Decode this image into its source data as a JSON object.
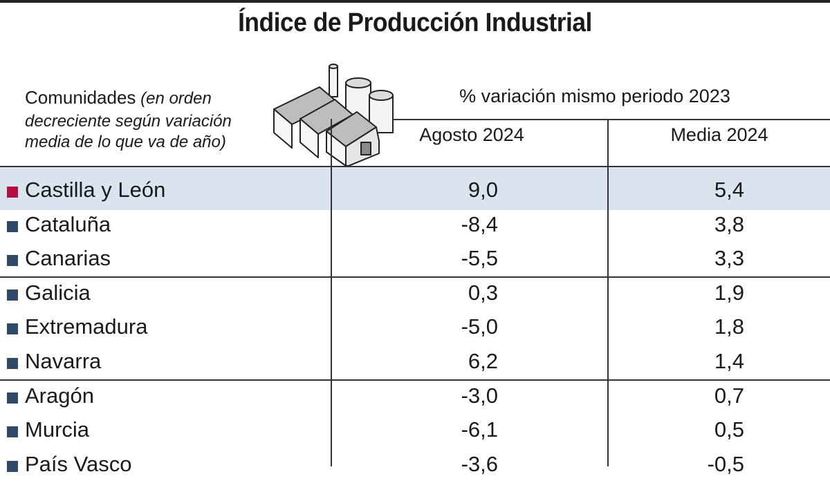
{
  "title": "Índice de Producción Industrial",
  "header": {
    "first_col_main": "Comunidades",
    "first_col_note_a": " (en orden",
    "first_col_note_b": "decreciente según variación",
    "first_col_note_c": "media de lo que va de año)",
    "group_label": "% variación mismo periodo 2023",
    "col1": "Agosto 2024",
    "col2": "Media 2024",
    "icon": "factory-icon"
  },
  "colors": {
    "highlight_bg": "#d9e4ef",
    "highlight_marker": "#b01040",
    "marker": "#2f4a66"
  },
  "chart_data": {
    "type": "table",
    "title": "Índice de Producción Industrial",
    "columns": [
      "Comunidades",
      "Agosto 2024",
      "Media 2024"
    ],
    "rows": [
      {
        "region": "Castilla y León",
        "agosto": "9,0",
        "media": "5,4",
        "highlight": true
      },
      {
        "region": "Cataluña",
        "agosto": "-8,4",
        "media": "3,8"
      },
      {
        "region": "Canarias",
        "agosto": "-5,5",
        "media": "3,3"
      },
      {
        "region": "Galicia",
        "agosto": "0,3",
        "media": "1,9"
      },
      {
        "region": "Extremadura",
        "agosto": "-5,0",
        "media": "1,8"
      },
      {
        "region": "Navarra",
        "agosto": "6,2",
        "media": "1,4"
      },
      {
        "region": "Aragón",
        "agosto": "-3,0",
        "media": "0,7"
      },
      {
        "region": "Murcia",
        "agosto": "-6,1",
        "media": "0,5"
      },
      {
        "region": "País Vasco",
        "agosto": "-3,6",
        "media": "-0,5"
      }
    ]
  }
}
